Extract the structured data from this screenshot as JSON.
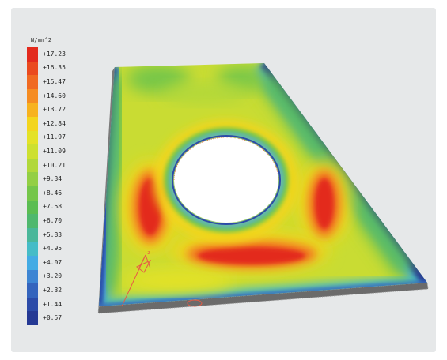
{
  "legend": {
    "unit_label": "_ N/mm^2 _",
    "entries": [
      {
        "label": "+17.23",
        "color": "#e32a1d"
      },
      {
        "label": "+16.35",
        "color": "#ea4a1f"
      },
      {
        "label": "+15.47",
        "color": "#f06a22"
      },
      {
        "label": "+14.60",
        "color": "#f58c22"
      },
      {
        "label": "+13.72",
        "color": "#f7b21f"
      },
      {
        "label": "+12.84",
        "color": "#f3d51d"
      },
      {
        "label": "+11.97",
        "color": "#e4e227"
      },
      {
        "label": "+11.09",
        "color": "#cde030"
      },
      {
        "label": "+10.21",
        "color": "#b1d83a"
      },
      {
        "label": "+9.34",
        "color": "#93cf44"
      },
      {
        "label": "+8.46",
        "color": "#75c64a"
      },
      {
        "label": "+7.58",
        "color": "#5bbd52"
      },
      {
        "label": "+6.70",
        "color": "#4fb86e"
      },
      {
        "label": "+5.83",
        "color": "#4ab79a"
      },
      {
        "label": "+4.95",
        "color": "#45bcc7"
      },
      {
        "label": "+4.07",
        "color": "#43abe4"
      },
      {
        "label": "+3.20",
        "color": "#3d85d3"
      },
      {
        "label": "+2.32",
        "color": "#3464bd"
      },
      {
        "label": "+1.44",
        "color": "#2c4ba8"
      },
      {
        "label": "+0.57",
        "color": "#253994"
      }
    ]
  },
  "axis": {
    "label": "z"
  },
  "colors": {
    "panel": "#e6e8e9",
    "plate_edge": "#5a5a5a",
    "axis_marker": "#e85a45"
  }
}
